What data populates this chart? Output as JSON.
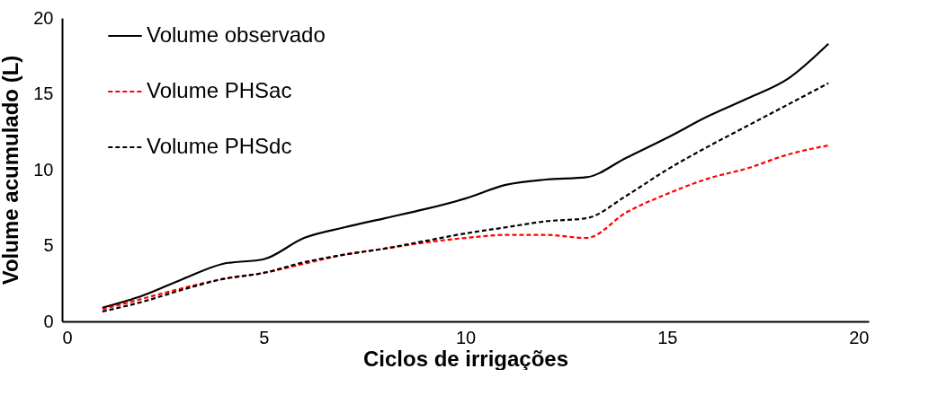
{
  "chart_data": {
    "type": "line",
    "xlabel": "Ciclos de irrigações",
    "ylabel": "Volume acumulado (L)",
    "x": [
      1,
      2,
      3,
      4,
      5,
      6,
      7,
      8,
      9,
      10,
      11,
      12,
      13,
      14,
      15,
      16,
      17,
      18,
      19
    ],
    "series": [
      {
        "name": "Volume observado",
        "color": "#000000",
        "line_style": "solid",
        "values": [
          0.9,
          1.7,
          2.8,
          3.8,
          4.1,
          5.5,
          6.2,
          6.8,
          7.4,
          8.1,
          9.0,
          9.35,
          9.5,
          10.8,
          12.1,
          13.5,
          14.7,
          16.0,
          18.3
        ]
      },
      {
        "name": "Volume PHSac",
        "color": "#ff0000",
        "line_style": "dashed",
        "values": [
          0.8,
          1.5,
          2.2,
          2.8,
          3.2,
          3.8,
          4.4,
          4.8,
          5.2,
          5.5,
          5.7,
          5.7,
          5.5,
          7.2,
          8.4,
          9.4,
          10.1,
          11.0,
          11.6
        ]
      },
      {
        "name": "Volume PHSdc",
        "color": "#000000",
        "line_style": "dashed",
        "values": [
          0.65,
          1.3,
          2.1,
          2.8,
          3.2,
          3.9,
          4.4,
          4.8,
          5.3,
          5.8,
          6.2,
          6.6,
          6.8,
          8.3,
          10.0,
          11.5,
          12.9,
          14.3,
          15.7
        ]
      }
    ],
    "xlim": [
      0,
      20
    ],
    "xticks": [
      0,
      5,
      10,
      15,
      20
    ],
    "ylim": [
      0,
      20
    ],
    "yticks": [
      0,
      5,
      10,
      15,
      20
    ],
    "grid": false,
    "legend": "top left",
    "marker": "none"
  }
}
